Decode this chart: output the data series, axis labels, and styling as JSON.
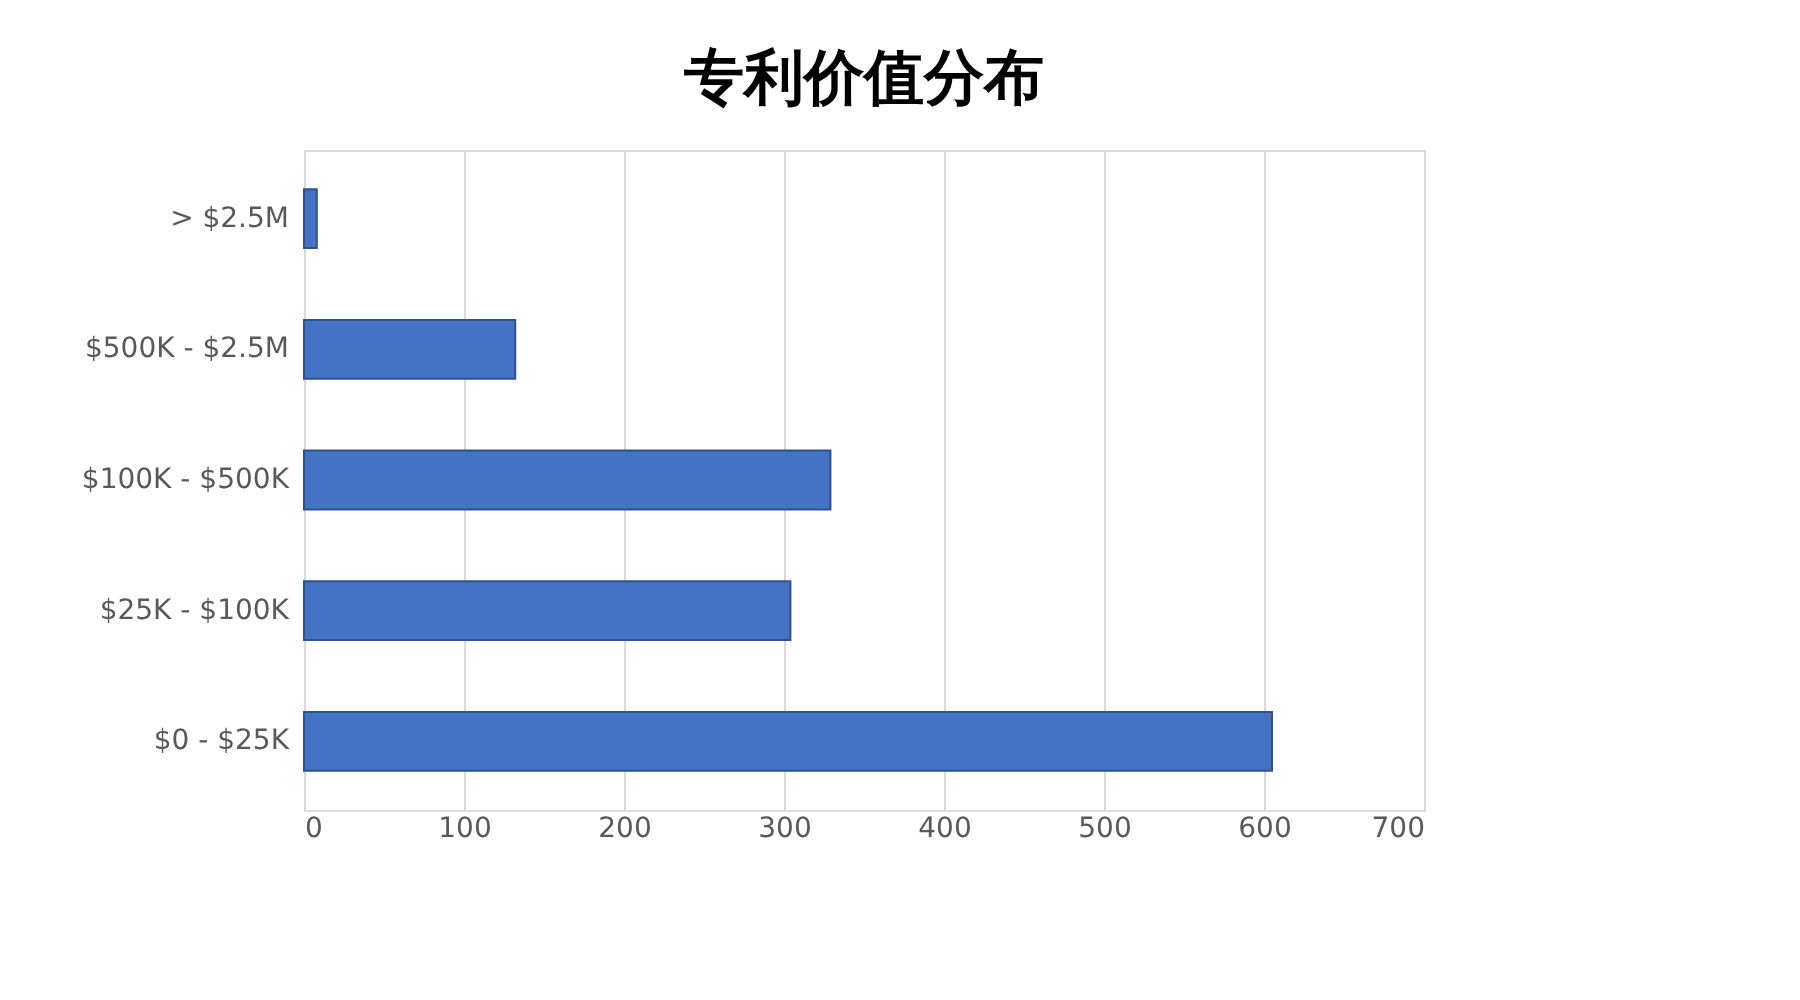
{
  "chart_data": {
    "type": "bar",
    "orientation": "horizontal",
    "title": "专利价值分布",
    "categories": [
      "> $2.5M",
      "$500K - $2.5M",
      "$100K - $500K",
      "$25K - $100K",
      "$0 - $25K"
    ],
    "values": [
      8,
      132,
      329,
      304,
      605
    ],
    "color": "#4472c4",
    "xlim": [
      0,
      700
    ],
    "xticks": [
      0,
      100,
      200,
      300,
      400,
      500,
      600,
      700
    ],
    "grid": "x",
    "legend": false
  }
}
